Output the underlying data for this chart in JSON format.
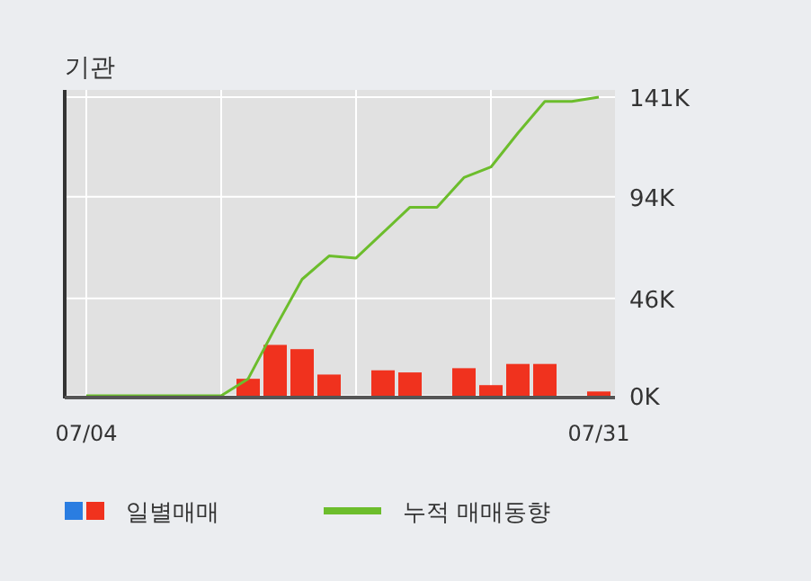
{
  "chart_data": {
    "type": "bar",
    "title": "기관",
    "categories": [
      "07/04",
      null,
      null,
      null,
      null,
      null,
      null,
      null,
      null,
      null,
      null,
      null,
      null,
      null,
      null,
      null,
      null,
      null,
      null,
      "07/31"
    ],
    "series": [
      {
        "name": "일별매매",
        "color": "#f0321e",
        "values": [
          0,
          0,
          0,
          0,
          0,
          0,
          8,
          24,
          22,
          10,
          0,
          12,
          11,
          0,
          13,
          5,
          15,
          15,
          0,
          2
        ]
      },
      {
        "name": "누적 매매동향",
        "type": "line",
        "color": "#6cbd2c",
        "values": [
          0,
          0,
          0,
          0,
          0,
          0,
          8,
          32,
          55,
          66,
          65,
          77,
          89,
          89,
          103,
          108,
          124,
          139,
          139,
          141
        ]
      }
    ],
    "ylim": [
      0,
      141
    ],
    "yticks": [
      {
        "value": 0,
        "label": "0K"
      },
      {
        "value": 46,
        "label": "46K"
      },
      {
        "value": 94,
        "label": "94K"
      },
      {
        "value": 141,
        "label": "141K"
      }
    ],
    "grid": true,
    "legend": "bottom"
  }
}
